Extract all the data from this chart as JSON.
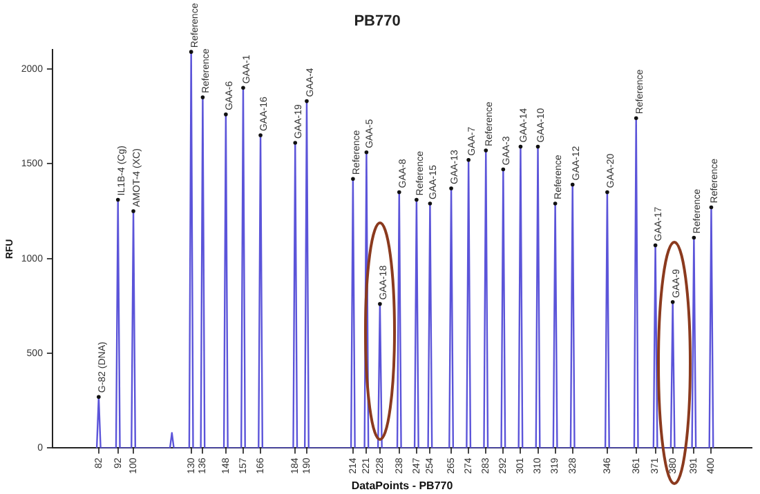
{
  "chart_data": {
    "type": "line",
    "title": "PB770",
    "xlabel": "DataPoints - PB770",
    "ylabel": "RFU",
    "xlim": [
      58,
      421
    ],
    "ylim": [
      0,
      2100
    ],
    "xticks": [
      82,
      92,
      100,
      130,
      136,
      148,
      157,
      166,
      184,
      190,
      214,
      221,
      228,
      238,
      247,
      254,
      265,
      274,
      283,
      292,
      301,
      310,
      319,
      328,
      346,
      361,
      371,
      380,
      391,
      400
    ],
    "yticks": [
      0,
      500,
      1000,
      1500,
      2000
    ],
    "grid": false,
    "legend": false,
    "marker": "none",
    "line_style": "solid",
    "series": [
      {
        "color": "#5b54d9",
        "x": [
          81,
          82,
          83,
          91,
          92,
          93,
          99,
          100,
          101,
          119,
          120,
          121,
          129,
          130,
          131,
          135,
          136,
          137,
          147,
          148,
          149,
          156,
          157,
          158,
          165,
          166,
          167,
          183,
          184,
          185,
          189,
          190,
          191,
          213,
          214,
          215,
          220,
          221,
          222,
          227,
          228,
          229,
          237,
          238,
          239,
          246,
          247,
          248,
          253,
          254,
          255,
          264,
          265,
          266,
          273,
          274,
          275,
          282,
          283,
          284,
          291,
          292,
          293,
          300,
          301,
          302,
          309,
          310,
          311,
          318,
          319,
          320,
          327,
          328,
          329,
          345,
          346,
          347,
          360,
          361,
          362,
          370,
          371,
          372,
          379,
          380,
          381,
          390,
          391,
          392,
          399,
          400,
          401
        ],
        "values": [
          0,
          270,
          0,
          0,
          1310,
          0,
          0,
          1250,
          0,
          0,
          80,
          0,
          0,
          2090,
          0,
          0,
          1850,
          0,
          0,
          1760,
          0,
          0,
          1900,
          0,
          0,
          1650,
          0,
          0,
          1610,
          0,
          0,
          1830,
          0,
          0,
          1420,
          0,
          0,
          1560,
          0,
          0,
          760,
          0,
          0,
          1350,
          0,
          0,
          1310,
          0,
          0,
          1290,
          0,
          0,
          1370,
          0,
          0,
          1520,
          0,
          0,
          1570,
          0,
          0,
          1470,
          0,
          0,
          1590,
          0,
          0,
          1590,
          0,
          0,
          1290,
          0,
          0,
          1390,
          0,
          0,
          1350,
          0,
          0,
          1740,
          0,
          0,
          1070,
          0,
          0,
          770,
          0,
          0,
          1110,
          0,
          0,
          1270,
          0
        ]
      }
    ],
    "annotations": [
      {
        "text": "G-82 (DNA)",
        "x": 82,
        "y": 270
      },
      {
        "text": "IL1B-4 (Cg)",
        "x": 92,
        "y": 1310
      },
      {
        "text": "AMOT-4 (XC)",
        "x": 100,
        "y": 1250
      },
      {
        "text": "Reference",
        "x": 130,
        "y": 2090
      },
      {
        "text": "Reference",
        "x": 136,
        "y": 1850
      },
      {
        "text": "GAA-6",
        "x": 148,
        "y": 1760
      },
      {
        "text": "GAA-1",
        "x": 157,
        "y": 1900
      },
      {
        "text": "GAA-16",
        "x": 166,
        "y": 1650
      },
      {
        "text": "GAA-19",
        "x": 184,
        "y": 1610
      },
      {
        "text": "GAA-4",
        "x": 190,
        "y": 1830
      },
      {
        "text": "Reference",
        "x": 214,
        "y": 1420
      },
      {
        "text": "GAA-5",
        "x": 221,
        "y": 1560
      },
      {
        "text": "GAA-18",
        "x": 228,
        "y": 760
      },
      {
        "text": "GAA-8",
        "x": 238,
        "y": 1350
      },
      {
        "text": "Reference",
        "x": 247,
        "y": 1310
      },
      {
        "text": "GAA-15",
        "x": 254,
        "y": 1290
      },
      {
        "text": "GAA-13",
        "x": 265,
        "y": 1370
      },
      {
        "text": "GAA-7",
        "x": 274,
        "y": 1520
      },
      {
        "text": "Reference",
        "x": 283,
        "y": 1570
      },
      {
        "text": "GAA-3",
        "x": 292,
        "y": 1470
      },
      {
        "text": "GAA-14",
        "x": 301,
        "y": 1590
      },
      {
        "text": "GAA-10",
        "x": 310,
        "y": 1590
      },
      {
        "text": "Reference",
        "x": 319,
        "y": 1290
      },
      {
        "text": "GAA-12",
        "x": 328,
        "y": 1390
      },
      {
        "text": "GAA-20",
        "x": 346,
        "y": 1350
      },
      {
        "text": "Reference",
        "x": 361,
        "y": 1740
      },
      {
        "text": "GAA-17",
        "x": 371,
        "y": 1070
      },
      {
        "text": "GAA-9",
        "x": 380,
        "y": 770
      },
      {
        "text": "Reference",
        "x": 391,
        "y": 1110
      },
      {
        "text": "Reference",
        "x": 400,
        "y": 1270
      }
    ]
  }
}
